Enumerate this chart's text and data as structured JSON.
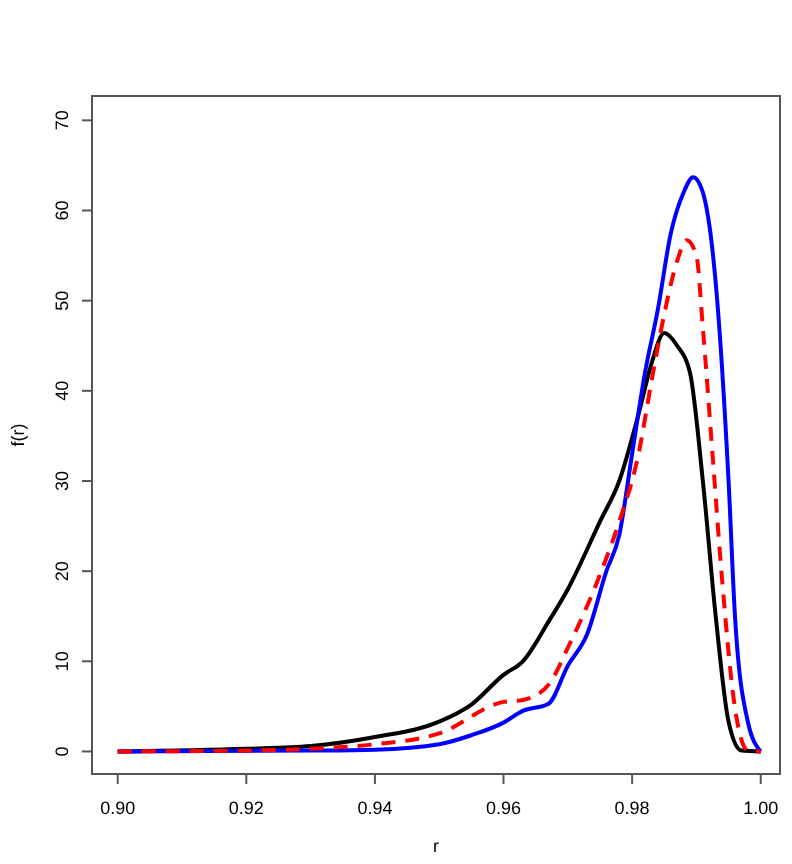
{
  "chart_data": {
    "type": "line",
    "xlabel": "r",
    "ylabel": "f(r)",
    "xlim": [
      0.896,
      1.003
    ],
    "ylim": [
      -2.5,
      72.7
    ],
    "xticks": [
      {
        "value": 0.9,
        "label": "0.90"
      },
      {
        "value": 0.92,
        "label": "0.92"
      },
      {
        "value": 0.94,
        "label": "0.94"
      },
      {
        "value": 0.96,
        "label": "0.96"
      },
      {
        "value": 0.98,
        "label": "0.98"
      },
      {
        "value": 1.0,
        "label": "1.00"
      }
    ],
    "yticks": [
      0,
      10,
      20,
      30,
      40,
      50,
      60,
      70
    ],
    "grid": false,
    "marker": "none",
    "series": [
      {
        "color": "#000000",
        "line_style": "solid",
        "x": [
          0.9,
          0.92,
          0.93,
          0.94,
          0.95,
          0.955,
          0.96,
          0.963,
          0.967,
          0.97,
          0.975,
          0.978,
          0.981,
          0.983,
          0.985,
          0.987,
          0.989,
          0.991,
          0.993,
          0.995,
          0.997,
          1.0
        ],
        "values": [
          0,
          0.3,
          0.6,
          1.6,
          3.3,
          5.2,
          8.5,
          10,
          14.4,
          18,
          25.5,
          30,
          37.4,
          43,
          46.4,
          45,
          42,
          30,
          15,
          3.3,
          0.1,
          0
        ]
      },
      {
        "color": "#ff0000",
        "line_style": "dashed",
        "x": [
          0.9,
          0.92,
          0.93,
          0.94,
          0.95,
          0.96,
          0.963,
          0.967,
          0.97,
          0.975,
          0.978,
          0.981,
          0.983,
          0.985,
          0.987,
          0.9885,
          0.99,
          0.991,
          0.9925,
          0.994,
          0.996,
          0.998,
          1.0
        ],
        "values": [
          0,
          0.1,
          0.3,
          0.8,
          2,
          5.5,
          5.7,
          7.4,
          11.5,
          19.6,
          25.5,
          33,
          41,
          48.5,
          54.4,
          56.7,
          55,
          47,
          33,
          19,
          4.8,
          0.1,
          0
        ]
      },
      {
        "color": "#0000ff",
        "line_style": "solid",
        "x": [
          0.9,
          0.93,
          0.94,
          0.95,
          0.955,
          0.96,
          0.963,
          0.967,
          0.97,
          0.973,
          0.976,
          0.978,
          0.98,
          0.982,
          0.984,
          0.986,
          0.988,
          0.9895,
          0.991,
          0.993,
          0.995,
          0.996,
          0.998,
          1.0
        ],
        "values": [
          0,
          0.1,
          0.2,
          0.8,
          1.8,
          3.2,
          4.5,
          5.3,
          9.5,
          13,
          20,
          24,
          33,
          42,
          49,
          57.4,
          62,
          63.7,
          62,
          52,
          30,
          15,
          3.3,
          0
        ]
      }
    ]
  }
}
